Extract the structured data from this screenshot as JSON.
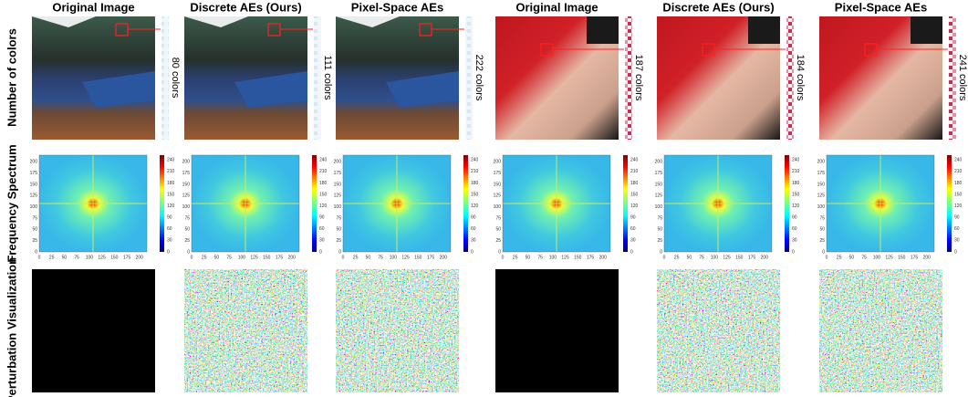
{
  "columns": [
    "Original Image",
    "Discrete AEs (Ours)",
    "Pixel-Space AEs",
    "Original Image",
    "Discrete AEs (Ours)",
    "Pixel-Space AEs"
  ],
  "rows": [
    "Number of colors",
    "Frequency Spectrum",
    "Perturbation Visualization"
  ],
  "color_counts": [
    "80 colors",
    "111 colors",
    "222 colors",
    "187 colors",
    "184 colors",
    "241 colors"
  ],
  "spectrum_axis": {
    "x_ticks": [
      "0",
      "25",
      "50",
      "75",
      "100",
      "125",
      "150",
      "175",
      "200"
    ],
    "y_ticks": [
      "0",
      "25",
      "50",
      "75",
      "100",
      "125",
      "150",
      "175",
      "200"
    ],
    "colorbar_ticks": [
      "0",
      "30",
      "60",
      "90",
      "120",
      "150",
      "180",
      "210",
      "240"
    ]
  }
}
